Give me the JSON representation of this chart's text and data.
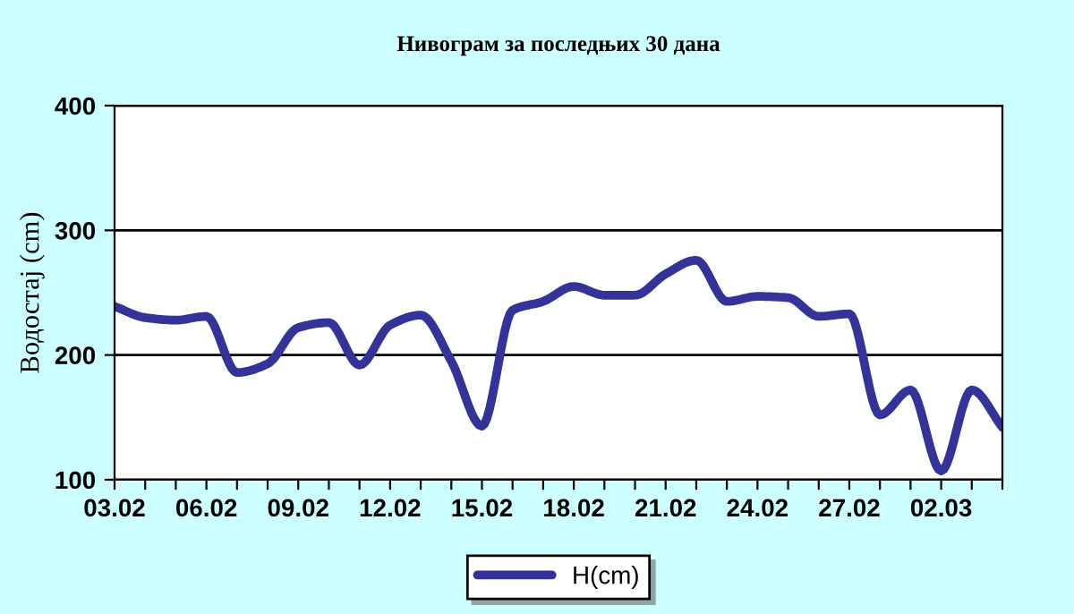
{
  "chart_data": {
    "type": "line",
    "title": "Нивограм за последњих 30 дана",
    "ylabel": "Водостај (cm)",
    "categories": [
      "03.02",
      null,
      null,
      "06.02",
      null,
      null,
      "09.02",
      null,
      null,
      "12.02",
      null,
      null,
      "15.02",
      null,
      null,
      "18.02",
      null,
      null,
      "21.02",
      null,
      null,
      "24.02",
      null,
      null,
      "27.02",
      null,
      null,
      "02.03",
      null,
      null
    ],
    "series": [
      {
        "name": "H(cm)",
        "color": "#333399",
        "values": [
          239,
          230,
          228,
          231,
          186,
          193,
          222,
          226,
          192,
          224,
          232,
          195,
          143,
          236,
          243,
          255,
          248,
          248,
          265,
          276,
          243,
          247,
          246,
          231,
          233,
          152,
          172,
          107,
          172,
          142
        ]
      }
    ],
    "ylim": [
      100,
      400
    ],
    "yticks": [
      100,
      200,
      300,
      400
    ],
    "grid": "y",
    "legend": "bottom",
    "marker": "none",
    "line_style": "solid"
  }
}
